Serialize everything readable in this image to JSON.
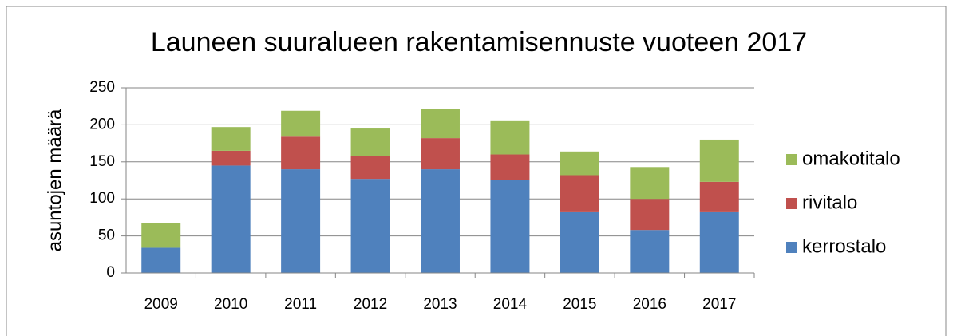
{
  "chart_data": {
    "type": "stacked_bar",
    "title": "Launeen suuralueen rakentamisennuste vuoteen 2017",
    "y_label": "asuntojen määrä",
    "categories": [
      "2009",
      "2010",
      "2011",
      "2012",
      "2013",
      "2014",
      "2015",
      "2016",
      "2017"
    ],
    "series": [
      {
        "name": "kerrostalo",
        "color": "#4f81bd",
        "values": [
          34,
          145,
          140,
          127,
          140,
          125,
          82,
          58,
          82
        ]
      },
      {
        "name": "rivitalo",
        "color": "#c0504d",
        "values": [
          0,
          20,
          44,
          31,
          42,
          35,
          50,
          42,
          41
        ]
      },
      {
        "name": "omakotitalo",
        "color": "#9bbb59",
        "values": [
          33,
          32,
          35,
          37,
          39,
          46,
          32,
          43,
          57
        ]
      }
    ],
    "ylim": [
      0,
      250
    ],
    "yticks": [
      0,
      50,
      100,
      150,
      200,
      250
    ],
    "grid": true,
    "legend": "right"
  }
}
